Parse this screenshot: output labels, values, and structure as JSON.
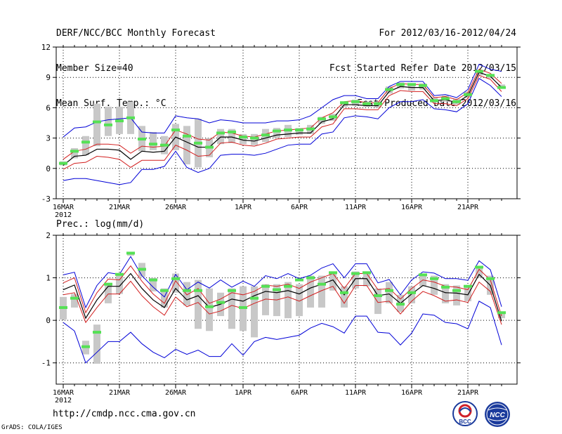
{
  "header": {
    "title": "DERF/NCC/BCC Monthly Forecast",
    "member_size": "Member Size=40",
    "forecast_period": "For 2012/03/16-2012/04/24",
    "refer_date": "Fcst Started Refer Date 2012/03/15",
    "produced_date": "Fcst Produced Date 2012/03/16"
  },
  "footer": {
    "url": "http://cmdp.ncc.cma.gov.cn",
    "grads": "GrADS: COLA/IGES",
    "logo_left_text": "BCC",
    "logo_right_text": "NCC"
  },
  "colors": {
    "ensemble_mean": "#000000",
    "spread_inner": "#d21e1e",
    "spread_outer": "#0000d7",
    "member_range_bar": "#c8c8c8",
    "median_marker": "#55e155",
    "axis": "#000000",
    "grid": "#000000"
  },
  "chart_data": [
    {
      "type": "line",
      "title": "Mean Surf. Temp.: °C",
      "x_tick_labels": [
        "16MAR",
        "21MAR",
        "26MAR",
        "1APR",
        "6APR",
        "11APR",
        "16APR",
        "21APR"
      ],
      "x_tick_days": [
        0,
        5,
        10,
        16,
        21,
        26,
        31,
        36
      ],
      "year_label": "2012",
      "n_days": 40,
      "ylim": [
        -3,
        12
      ],
      "yticks": [
        -3,
        0,
        3,
        6,
        9,
        12
      ],
      "series": [
        {
          "name": "upper-spread",
          "color": "#0000d7",
          "values": [
            3.1,
            4.0,
            4.1,
            4.6,
            4.8,
            4.9,
            5.0,
            3.6,
            3.5,
            3.5,
            5.2,
            5.0,
            4.9,
            4.5,
            4.8,
            4.7,
            4.5,
            4.5,
            4.5,
            4.7,
            4.7,
            4.8,
            5.2,
            6.0,
            6.8,
            7.2,
            7.2,
            6.9,
            6.9,
            8.1,
            8.6,
            8.6,
            8.6,
            7.2,
            7.3,
            7.0,
            7.8,
            10.3,
            9.8,
            9.6
          ]
        },
        {
          "name": "upper-inner",
          "color": "#d21e1e",
          "values": [
            0.9,
            1.7,
            1.9,
            2.4,
            2.4,
            2.3,
            1.5,
            2.2,
            2.1,
            2.2,
            3.8,
            3.4,
            2.9,
            2.8,
            3.6,
            3.5,
            3.2,
            3.1,
            3.4,
            3.7,
            3.8,
            3.9,
            4.0,
            5.0,
            5.5,
            6.6,
            6.7,
            6.5,
            6.5,
            7.9,
            8.4,
            8.3,
            8.3,
            7.0,
            7.1,
            6.8,
            7.5,
            9.8,
            9.4,
            8.4
          ]
        },
        {
          "name": "ensemble-mean",
          "color": "#000000",
          "values": [
            0.3,
            1.2,
            1.3,
            1.9,
            1.9,
            1.8,
            0.9,
            1.7,
            1.6,
            1.7,
            3.1,
            2.6,
            2.1,
            2.1,
            3.1,
            3.1,
            2.8,
            2.7,
            3.0,
            3.3,
            3.4,
            3.5,
            3.5,
            4.6,
            4.9,
            6.3,
            6.3,
            6.2,
            6.2,
            7.6,
            8.1,
            8.0,
            8.0,
            6.7,
            6.8,
            6.5,
            7.2,
            9.5,
            9.1,
            8.0
          ]
        },
        {
          "name": "lower-inner",
          "color": "#d21e1e",
          "values": [
            -0.1,
            0.5,
            0.6,
            1.2,
            1.1,
            0.9,
            0.1,
            0.8,
            0.8,
            0.8,
            2.3,
            1.8,
            1.2,
            1.3,
            2.5,
            2.6,
            2.3,
            2.2,
            2.5,
            2.9,
            3.0,
            3.1,
            3.1,
            4.1,
            4.4,
            5.9,
            5.9,
            5.8,
            5.8,
            7.2,
            7.7,
            7.6,
            7.6,
            6.4,
            6.4,
            6.2,
            6.9,
            9.2,
            8.8,
            7.6
          ]
        },
        {
          "name": "lower-spread",
          "color": "#0000d7",
          "values": [
            -1.2,
            -1.0,
            -1.0,
            -1.2,
            -1.4,
            -1.6,
            -1.4,
            -0.1,
            -0.1,
            0.2,
            1.7,
            0.1,
            -0.4,
            0.0,
            1.3,
            1.4,
            1.4,
            1.3,
            1.5,
            1.9,
            2.3,
            2.4,
            2.4,
            3.4,
            3.6,
            5.0,
            5.2,
            5.1,
            4.9,
            6.0,
            6.6,
            6.6,
            6.8,
            5.9,
            5.8,
            5.6,
            6.4,
            8.9,
            8.2,
            7.1
          ]
        }
      ],
      "member_range": {
        "name": "member-min-max-bars",
        "color": "#c8c8c8",
        "low": [
          0.3,
          1.0,
          1.3,
          2.2,
          3.2,
          3.4,
          3.4,
          1.7,
          1.8,
          1.4,
          1.8,
          0.4,
          0.1,
          1.1,
          2.4,
          2.5,
          2.4,
          2.3,
          2.6,
          3.0,
          3.1,
          3.3,
          3.4,
          4.4,
          4.7,
          6.1,
          6.2,
          6.1,
          6.0,
          7.4,
          7.9,
          7.7,
          7.8,
          6.5,
          6.6,
          6.3,
          7.0,
          9.2,
          8.9,
          7.9
        ],
        "high": [
          0.7,
          2.0,
          3.2,
          6.4,
          6.1,
          6.1,
          6.6,
          4.2,
          3.6,
          3.2,
          4.4,
          4.2,
          4.9,
          3.0,
          3.9,
          3.9,
          3.4,
          3.4,
          3.9,
          4.0,
          4.3,
          4.0,
          4.3,
          5.1,
          5.4,
          6.6,
          6.8,
          6.6,
          6.6,
          8.1,
          8.5,
          8.4,
          8.4,
          7.0,
          7.2,
          6.9,
          7.6,
          9.6,
          9.3,
          8.3
        ]
      },
      "median": {
        "name": "member-median",
        "color": "#55e155",
        "values": [
          0.5,
          1.7,
          2.6,
          4.6,
          4.3,
          4.7,
          5.0,
          2.9,
          2.4,
          2.3,
          3.8,
          3.2,
          2.5,
          2.1,
          3.5,
          3.6,
          3.1,
          3.0,
          3.3,
          3.7,
          3.8,
          3.8,
          3.9,
          4.9,
          5.1,
          6.5,
          6.6,
          6.4,
          6.4,
          7.8,
          8.3,
          8.3,
          8.2,
          6.7,
          6.9,
          6.6,
          7.3,
          9.6,
          9.2,
          8.0
        ]
      }
    },
    {
      "type": "line",
      "title": "Prec.: log(mm/d)",
      "x_tick_labels": [
        "16MAR",
        "21MAR",
        "26MAR",
        "1APR",
        "6APR",
        "11APR",
        "16APR",
        "21APR"
      ],
      "x_tick_days": [
        0,
        5,
        10,
        16,
        21,
        26,
        31,
        36
      ],
      "year_label": "2012",
      "n_days": 40,
      "ylim": [
        -1.5,
        2
      ],
      "yticks": [
        -1,
        0,
        1,
        2
      ],
      "series": [
        {
          "name": "upper-spread",
          "color": "#0000d7",
          "values": [
            1.07,
            1.13,
            0.3,
            0.82,
            1.12,
            1.08,
            1.5,
            1.05,
            0.78,
            0.55,
            1.08,
            0.72,
            0.9,
            0.76,
            0.95,
            0.78,
            0.92,
            0.8,
            1.05,
            0.98,
            1.1,
            0.98,
            1.06,
            1.23,
            1.33,
            1.0,
            1.33,
            1.33,
            0.88,
            0.96,
            0.6,
            0.95,
            1.14,
            1.11,
            0.98,
            0.98,
            0.94,
            1.4,
            1.19,
            0.32
          ]
        },
        {
          "name": "upper-inner",
          "color": "#d21e1e",
          "values": [
            0.88,
            1.0,
            0.18,
            0.65,
            0.97,
            0.95,
            1.28,
            0.92,
            0.62,
            0.4,
            0.93,
            0.6,
            0.75,
            0.4,
            0.5,
            0.65,
            0.6,
            0.68,
            0.83,
            0.8,
            0.85,
            0.75,
            0.9,
            1.0,
            1.1,
            0.75,
            1.1,
            1.1,
            0.72,
            0.75,
            0.5,
            0.75,
            0.95,
            0.9,
            0.8,
            0.78,
            0.72,
            1.2,
            0.95,
            0.1
          ]
        },
        {
          "name": "ensemble-mean",
          "color": "#000000",
          "values": [
            0.72,
            0.83,
            0.05,
            0.48,
            0.8,
            0.8,
            1.1,
            0.75,
            0.48,
            0.3,
            0.75,
            0.48,
            0.58,
            0.3,
            0.38,
            0.5,
            0.45,
            0.58,
            0.68,
            0.65,
            0.7,
            0.62,
            0.76,
            0.85,
            0.95,
            0.6,
            0.98,
            0.98,
            0.58,
            0.62,
            0.4,
            0.62,
            0.82,
            0.75,
            0.65,
            0.64,
            0.6,
            1.08,
            0.82,
            -0.02
          ]
        },
        {
          "name": "lower-inner",
          "color": "#d21e1e",
          "values": [
            0.6,
            0.65,
            -0.05,
            0.3,
            0.62,
            0.62,
            0.92,
            0.58,
            0.32,
            0.12,
            0.55,
            0.32,
            0.42,
            0.15,
            0.22,
            0.35,
            0.28,
            0.4,
            0.5,
            0.48,
            0.55,
            0.45,
            0.58,
            0.7,
            0.8,
            0.4,
            0.82,
            0.82,
            0.42,
            0.45,
            0.15,
            0.45,
            0.68,
            0.58,
            0.45,
            0.48,
            0.42,
            0.9,
            0.68,
            -0.1
          ]
        },
        {
          "name": "lower-spread",
          "color": "#0000d7",
          "values": [
            -0.05,
            -0.25,
            -1.0,
            -0.75,
            -0.5,
            -0.5,
            -0.28,
            -0.55,
            -0.75,
            -0.88,
            -0.68,
            -0.8,
            -0.7,
            -0.85,
            -0.85,
            -0.55,
            -0.82,
            -0.5,
            -0.4,
            -0.45,
            -0.4,
            -0.35,
            -0.18,
            -0.07,
            -0.15,
            -0.3,
            0.1,
            0.1,
            -0.28,
            -0.3,
            -0.58,
            -0.3,
            0.15,
            0.12,
            -0.05,
            -0.08,
            -0.2,
            0.45,
            0.3,
            -0.58
          ]
        }
      ],
      "member_range": {
        "name": "member-min-max-bars",
        "color": "#c8c8c8",
        "low": [
          0.02,
          0.3,
          -0.8,
          -1.02,
          0.4,
          0.62,
          1.52,
          1.02,
          0.68,
          0.3,
          0.65,
          0.35,
          -0.2,
          -0.25,
          0.1,
          -0.2,
          -0.25,
          -0.4,
          0.12,
          0.1,
          0.05,
          0.1,
          0.3,
          0.3,
          0.7,
          0.3,
          0.75,
          0.8,
          0.15,
          0.4,
          0.2,
          0.4,
          0.8,
          0.6,
          0.4,
          0.35,
          0.45,
          1.0,
          0.6,
          0.05
        ],
        "high": [
          0.55,
          0.62,
          -0.48,
          -0.1,
          0.85,
          1.1,
          1.6,
          1.35,
          1.0,
          0.75,
          1.1,
          0.9,
          0.95,
          0.75,
          0.65,
          0.75,
          0.8,
          0.8,
          0.85,
          0.85,
          0.9,
          0.85,
          1.05,
          1.05,
          1.15,
          0.8,
          1.15,
          1.15,
          0.75,
          0.9,
          0.6,
          0.8,
          1.08,
          1.05,
          0.85,
          0.82,
          0.8,
          1.28,
          1.05,
          0.2
        ]
      },
      "median": {
        "name": "member-median",
        "color": "#55e155",
        "values": [
          0.3,
          0.52,
          -0.62,
          -0.28,
          0.85,
          1.08,
          1.58,
          1.2,
          0.95,
          0.7,
          0.98,
          0.7,
          0.7,
          0.32,
          0.42,
          0.7,
          0.3,
          0.52,
          0.8,
          0.72,
          0.8,
          0.95,
          1.0,
          0.85,
          1.12,
          0.65,
          1.1,
          1.12,
          0.58,
          0.7,
          0.38,
          0.65,
          1.07,
          0.98,
          0.78,
          0.7,
          0.8,
          1.25,
          0.98,
          0.18
        ]
      }
    }
  ]
}
